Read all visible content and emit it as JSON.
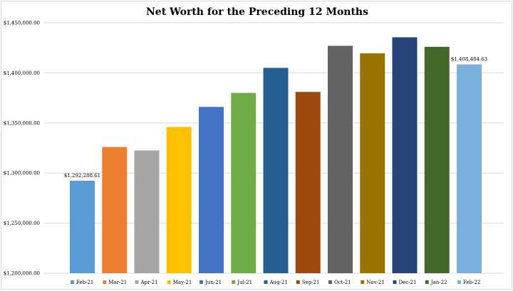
{
  "chart_data": {
    "type": "bar",
    "title": "Net Worth for the Preceding 12 Months",
    "xlabel": "",
    "ylabel": "",
    "ylim": [
      1200000,
      1450000
    ],
    "yticks": [
      1200000,
      1250000,
      1300000,
      1350000,
      1400000,
      1450000
    ],
    "ytick_labels": [
      "$1,200,000.00",
      "$1,250,000.00",
      "$1,300,000.00",
      "$1,350,000.00",
      "$1,400,000.00",
      "$1,450,000.00"
    ],
    "grid": true,
    "legend_position": "bottom",
    "categories": [
      "Feb-21",
      "Mar-21",
      "Apr-21",
      "May-21",
      "Jun-21",
      "Jul-21",
      "Aug-21",
      "Sep-21",
      "Oct-21",
      "Nov-21",
      "Dec-21",
      "Jan-22",
      "Feb-22"
    ],
    "values": [
      1292288.61,
      1326000,
      1322500,
      1346000,
      1366000,
      1380000,
      1405000,
      1381000,
      1427000,
      1419500,
      1435500,
      1426000,
      1408484.63
    ],
    "colors": [
      "#5b9bd5",
      "#ed7d31",
      "#a5a5a5",
      "#ffc000",
      "#4472c4",
      "#70ad47",
      "#255e91",
      "#9e480e",
      "#636363",
      "#997300",
      "#264478",
      "#43682b",
      "#7cafdd"
    ],
    "data_labels": [
      {
        "index": 0,
        "text": "$1,292,288.61"
      },
      {
        "index": 12,
        "text": "$1,408,484.63"
      }
    ]
  }
}
